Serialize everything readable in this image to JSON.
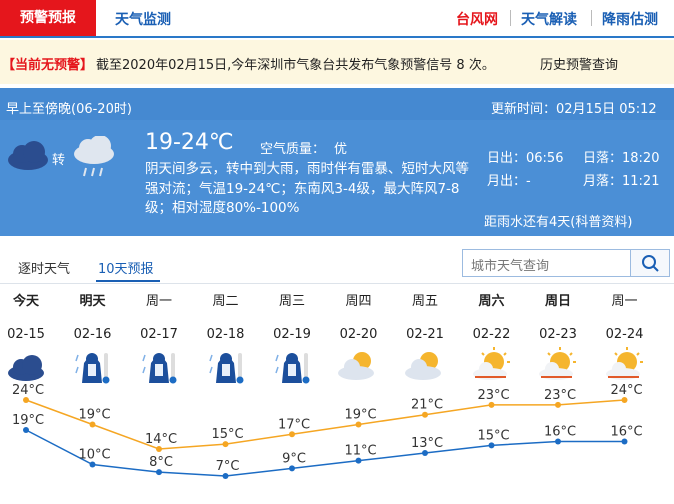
{
  "header": {
    "tabs": [
      "预警预报",
      "天气监测"
    ],
    "links": [
      "台风网",
      "天气解读",
      "降雨估测"
    ]
  },
  "alert": {
    "status": "【当前无预警】",
    "message": "截至2020年02月15日,今年深圳市气象台共发布气象预警信号 8 次。",
    "link": "历史预警查询"
  },
  "today": {
    "period": "早上至傍晚(06-20时)",
    "update": "更新时间：02月15日 05:12",
    "transition": "转",
    "temperature": "19-24℃",
    "air_quality_label": "空气质量：",
    "air_quality": "优",
    "description": "阴天间多云，转中到大雨，雨时伴有雷暴、短时大风等强对流；气温19-24℃；东南风3-4级，最大阵风7-8级；相对湿度80%-100%",
    "sunrise": "日出：06:56",
    "sunset": "日落：18:20",
    "moonrise": "月出：-",
    "moonset": "月落：11:21",
    "solar_term": "距雨水还有4天(科普资料)"
  },
  "tabs": [
    "逐时天气",
    "10天预报"
  ],
  "search": {
    "placeholder": "城市天气查询"
  },
  "forecast": {
    "days": [
      "今天",
      "明天",
      "周一",
      "周二",
      "周三",
      "周四",
      "周五",
      "周六",
      "周日",
      "周一"
    ],
    "dates": [
      "02-15",
      "02-16",
      "02-17",
      "02-18",
      "02-19",
      "02-20",
      "02-21",
      "02-22",
      "02-23",
      "02-24"
    ],
    "highs": {
      "color": "#f5a623",
      "values": [
        24,
        19,
        14,
        15,
        17,
        19,
        21,
        23,
        23,
        24
      ],
      "value_labels": [
        "24°C",
        "19°C",
        "14°C",
        "15°C",
        "17°C",
        "19°C",
        "21°C",
        "23°C",
        "23°C",
        "24°C"
      ]
    },
    "lows": {
      "color": "#1c6cc4",
      "values": [
        19,
        10,
        8,
        7,
        9,
        11,
        13,
        15,
        16,
        16
      ],
      "value_labels": [
        "19°C",
        "10°C",
        "8°C",
        "7°C",
        "9°C",
        "11°C",
        "13°C",
        "15°C",
        "16°C",
        "16°C"
      ]
    }
  }
}
